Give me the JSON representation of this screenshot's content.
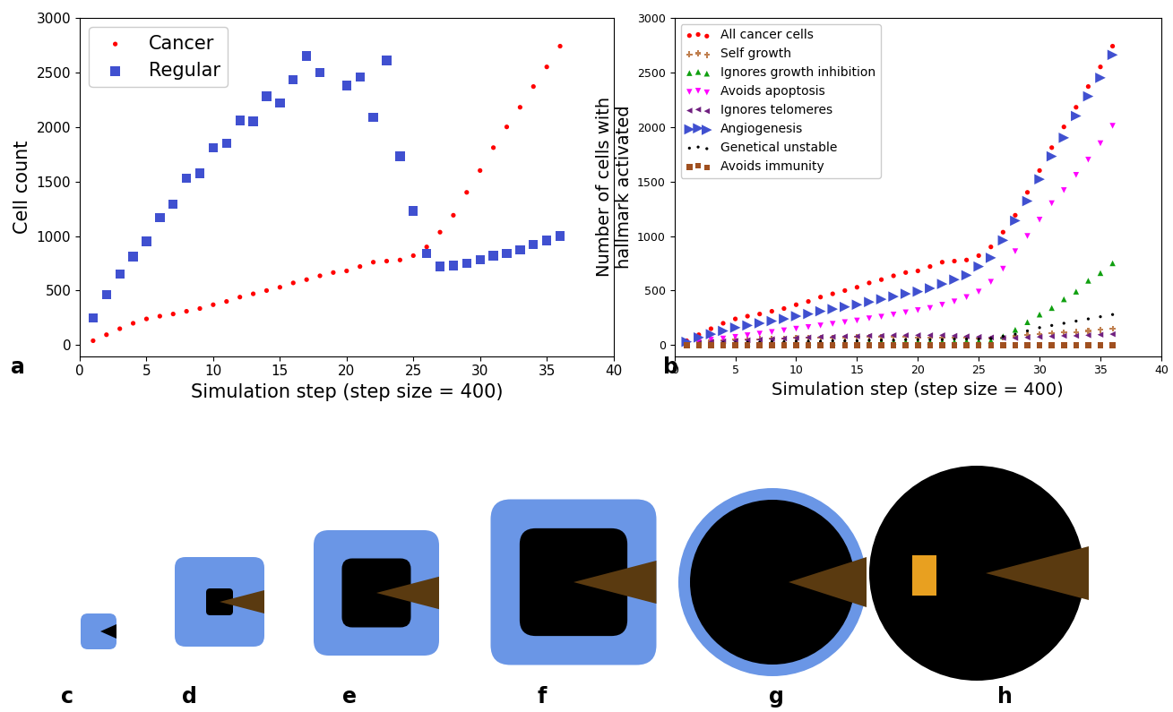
{
  "chart_data": [
    {
      "type": "scatter",
      "xlabel": "Simulation step (step size = 400)",
      "ylabel": "Cell count",
      "x": [
        1,
        2,
        3,
        4,
        5,
        6,
        7,
        8,
        9,
        10,
        11,
        12,
        13,
        14,
        15,
        16,
        17,
        18,
        19,
        20,
        21,
        22,
        23,
        24,
        25,
        26,
        27,
        28,
        29,
        30,
        31,
        32,
        33,
        34,
        35,
        36
      ],
      "xlim": [
        0,
        40
      ],
      "xticks": [
        0,
        5,
        10,
        15,
        20,
        25,
        30,
        35,
        40
      ],
      "ylim": [
        -100,
        3000
      ],
      "yticks": [
        0,
        500,
        1000,
        1500,
        2000,
        2500,
        3000
      ],
      "legend": "upper left",
      "series": [
        {
          "name": "Cancer",
          "color": "#ff0000",
          "marker": "circle",
          "values": [
            40,
            95,
            150,
            200,
            240,
            265,
            285,
            310,
            335,
            370,
            400,
            440,
            470,
            500,
            530,
            570,
            600,
            635,
            665,
            680,
            720,
            760,
            770,
            780,
            820,
            900,
            1035,
            1190,
            1400,
            1600,
            1810,
            2000,
            2180,
            2370,
            2550,
            2740
          ]
        },
        {
          "name": "Regular",
          "color": "#4050d0",
          "marker": "square",
          "values": [
            250,
            460,
            650,
            810,
            950,
            1170,
            1290,
            1530,
            1575,
            1810,
            1850,
            2060,
            2050,
            2280,
            2220,
            2430,
            2650,
            2500,
            null,
            2380,
            2460,
            2090,
            2610,
            1730,
            1230,
            840,
            720,
            730,
            750,
            780,
            820,
            840,
            870,
            920,
            960,
            1000
          ]
        }
      ]
    },
    {
      "type": "scatter",
      "xlabel": "Simulation step (step size = 400)",
      "ylabel": "Number of cells with\nhallmark activated",
      "x": [
        1,
        2,
        3,
        4,
        5,
        6,
        7,
        8,
        9,
        10,
        11,
        12,
        13,
        14,
        15,
        16,
        17,
        18,
        19,
        20,
        21,
        22,
        23,
        24,
        25,
        26,
        27,
        28,
        29,
        30,
        31,
        32,
        33,
        34,
        35,
        36
      ],
      "xlim": [
        0,
        40
      ],
      "xticks": [
        0,
        5,
        10,
        15,
        20,
        25,
        30,
        35,
        40
      ],
      "ylim": [
        -100,
        3000
      ],
      "yticks": [
        0,
        500,
        1000,
        1500,
        2000,
        2500,
        3000
      ],
      "legend": "upper left",
      "series": [
        {
          "name": "All cancer cells",
          "color": "#ff0000",
          "marker": "circle",
          "values": [
            40,
            95,
            150,
            200,
            240,
            265,
            285,
            310,
            335,
            370,
            400,
            440,
            470,
            500,
            530,
            570,
            600,
            635,
            665,
            680,
            720,
            760,
            770,
            780,
            820,
            900,
            1035,
            1190,
            1400,
            1600,
            1810,
            2000,
            2180,
            2370,
            2550,
            2740
          ]
        },
        {
          "name": "Self growth",
          "color": "#c08050",
          "marker": "plus",
          "values": [
            20,
            30,
            40,
            45,
            50,
            55,
            55,
            60,
            60,
            65,
            65,
            70,
            70,
            70,
            75,
            75,
            75,
            75,
            75,
            70,
            70,
            70,
            65,
            65,
            60,
            60,
            70,
            80,
            90,
            100,
            110,
            115,
            120,
            130,
            140,
            150
          ]
        },
        {
          "name": "Ignores growth inhibition",
          "color": "#10a010",
          "marker": "triangle_up",
          "values": [
            5,
            10,
            10,
            15,
            15,
            15,
            20,
            20,
            20,
            20,
            25,
            25,
            25,
            25,
            25,
            25,
            30,
            30,
            30,
            30,
            30,
            30,
            30,
            35,
            35,
            40,
            80,
            140,
            210,
            280,
            340,
            420,
            490,
            590,
            660,
            750
          ]
        },
        {
          "name": "Avoids apoptosis",
          "color": "#ff00ff",
          "marker": "triangle_down",
          "values": [
            15,
            30,
            50,
            60,
            75,
            90,
            105,
            120,
            135,
            150,
            165,
            180,
            195,
            210,
            225,
            245,
            260,
            280,
            300,
            320,
            340,
            370,
            400,
            440,
            490,
            580,
            700,
            860,
            1000,
            1150,
            1300,
            1420,
            1560,
            1700,
            1850,
            2010
          ]
        },
        {
          "name": "Ignores telomeres",
          "color": "#702080",
          "marker": "triangle_left",
          "values": [
            10,
            20,
            30,
            35,
            40,
            45,
            50,
            55,
            60,
            65,
            70,
            75,
            75,
            80,
            80,
            85,
            85,
            90,
            90,
            90,
            90,
            90,
            85,
            80,
            75,
            70,
            65,
            65,
            70,
            75,
            80,
            85,
            85,
            90,
            95,
            100
          ]
        },
        {
          "name": "Angiogenesis",
          "color": "#4050d0",
          "marker": "triangle_right",
          "values": [
            30,
            70,
            100,
            130,
            160,
            180,
            200,
            220,
            240,
            265,
            285,
            310,
            330,
            350,
            370,
            395,
            420,
            445,
            470,
            490,
            520,
            560,
            600,
            640,
            720,
            800,
            960,
            1140,
            1320,
            1520,
            1730,
            1900,
            2100,
            2280,
            2450,
            2660
          ]
        },
        {
          "name": "Genetical unstable",
          "color": "#000000",
          "marker": "point",
          "values": [
            5,
            10,
            15,
            20,
            20,
            25,
            25,
            30,
            30,
            35,
            35,
            35,
            40,
            40,
            40,
            45,
            45,
            45,
            50,
            50,
            50,
            50,
            55,
            55,
            55,
            60,
            80,
            100,
            130,
            160,
            180,
            200,
            220,
            240,
            260,
            280
          ]
        },
        {
          "name": "Avoids immunity",
          "color": "#a05020",
          "marker": "square",
          "values": [
            0,
            0,
            0,
            0,
            0,
            0,
            0,
            0,
            0,
            0,
            0,
            0,
            0,
            0,
            0,
            0,
            0,
            0,
            0,
            0,
            0,
            0,
            0,
            0,
            0,
            0,
            0,
            0,
            0,
            0,
            0,
            0,
            0,
            0,
            0,
            0
          ]
        }
      ]
    }
  ],
  "panel_labels": [
    "a",
    "b",
    "c",
    "d",
    "e",
    "f",
    "g",
    "h"
  ]
}
